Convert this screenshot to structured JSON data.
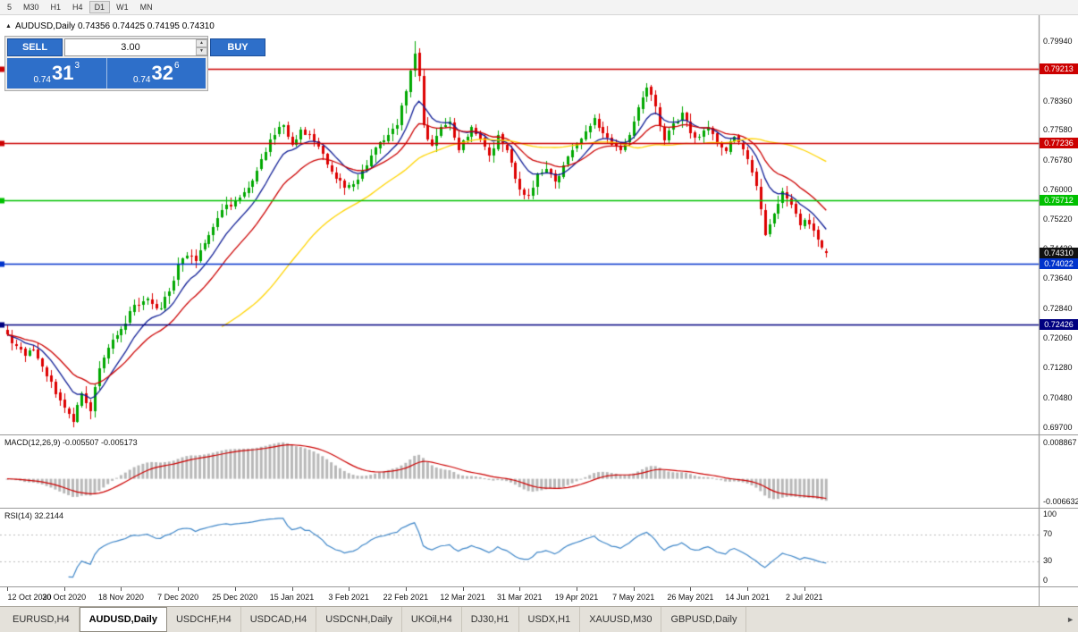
{
  "toolbar": {
    "timeframes": [
      "5",
      "M30",
      "H1",
      "H4",
      "D1",
      "W1",
      "MN"
    ],
    "active": "D1"
  },
  "chart": {
    "title": {
      "text": "AUDUSD,Daily 0.74356 0.74425 0.74195 0.74310"
    },
    "axis_ticks": [
      "0.79940",
      "0.78360",
      "0.77580",
      "0.76780",
      "0.76000",
      "0.75220",
      "0.74430",
      "0.73640",
      "0.72840",
      "0.72060",
      "0.71280",
      "0.70480",
      "0.69700"
    ],
    "hlines": [
      {
        "price": 0.79213,
        "label": "0.79213",
        "color": "#cc0000"
      },
      {
        "price": 0.77236,
        "label": "0.77236",
        "color": "#cc0000"
      },
      {
        "price": 0.75712,
        "label": "0.75712",
        "color": "#00c000"
      },
      {
        "price": 0.74022,
        "label": "0.74022",
        "color": "#0033cc"
      },
      {
        "price": 0.72426,
        "label": "0.72426",
        "color": "#000080"
      }
    ],
    "current_badge": {
      "label": "0.74310",
      "price": 0.7431,
      "color": "#111111"
    },
    "view": {
      "min": 0.695,
      "max": 0.8065
    },
    "colors": {
      "up": "#00a800",
      "down": "#dd0000",
      "ma_fast_blue": "#101e96",
      "ma_mid_red": "#cc0000",
      "ma_slow_yellow": "#ffd400",
      "macd_bar": "#b8b8b8",
      "macd_signal": "#cc0000",
      "rsi_line": "#3e86c8"
    }
  },
  "trade": {
    "sell": "SELL",
    "buy": "BUY",
    "volume": "3.00",
    "bid": {
      "prefix": "0.74",
      "big": "31",
      "sup": "3"
    },
    "ask": {
      "prefix": "0.74",
      "big": "32",
      "sup": "6"
    }
  },
  "macd": {
    "label": "MACD(12,26,9) -0.005507 -0.005173",
    "axis_top": "0.008867",
    "axis_bottom": "-0.006632"
  },
  "rsi": {
    "label": "RSI(14) 32.2144",
    "axis": [
      "100",
      "70",
      "30",
      "0"
    ],
    "levels": [
      70,
      30
    ]
  },
  "tabs_row": {
    "tabs": [
      "EURUSD,H4",
      "AUDUSD,Daily",
      "USDCHF,H4",
      "USDCAD,H4",
      "USDCNH,Daily",
      "UKOil,H4",
      "DJ30,H1",
      "USDX,H1",
      "XAUUSD,M30",
      "GBPUSD,Daily"
    ],
    "active": "AUDUSD,Daily"
  },
  "icons": {
    "spin_up": "▲",
    "spin_down": "▼",
    "scroll_right": "►",
    "collapse": "▲"
  },
  "chart_data": {
    "type": "candlestick",
    "symbol": "AUDUSD",
    "timeframe": "Daily",
    "count": 188,
    "seed": 20210709,
    "ohlc_last": {
      "open": 0.74356,
      "high": 0.74425,
      "low": 0.74195,
      "close": 0.7431
    },
    "extremes": {
      "high_idx": 93,
      "high": 0.7994,
      "low_idx": 15,
      "low": 0.697
    },
    "anchors": [
      [
        0,
        0.7215
      ],
      [
        2,
        0.7185
      ],
      [
        4,
        0.716
      ],
      [
        6,
        0.7175
      ],
      [
        8,
        0.713
      ],
      [
        10,
        0.709
      ],
      [
        12,
        0.704
      ],
      [
        13,
        0.702
      ],
      [
        15,
        0.6985
      ],
      [
        17,
        0.706
      ],
      [
        19,
        0.701
      ],
      [
        21,
        0.7125
      ],
      [
        23,
        0.718
      ],
      [
        26,
        0.723
      ],
      [
        29,
        0.7295
      ],
      [
        32,
        0.731
      ],
      [
        35,
        0.7285
      ],
      [
        37,
        0.733
      ],
      [
        39,
        0.74
      ],
      [
        41,
        0.7425
      ],
      [
        43,
        0.741
      ],
      [
        46,
        0.748
      ],
      [
        49,
        0.7545
      ],
      [
        52,
        0.757
      ],
      [
        55,
        0.7605
      ],
      [
        58,
        0.768
      ],
      [
        61,
        0.7745
      ],
      [
        63,
        0.777
      ],
      [
        65,
        0.772
      ],
      [
        67,
        0.776
      ],
      [
        69,
        0.7745
      ],
      [
        71,
        0.7715
      ],
      [
        73,
        0.7665
      ],
      [
        75,
        0.763
      ],
      [
        77,
        0.7605
      ],
      [
        79,
        0.7615
      ],
      [
        81,
        0.765
      ],
      [
        83,
        0.769
      ],
      [
        85,
        0.7725
      ],
      [
        87,
        0.7745
      ],
      [
        89,
        0.777
      ],
      [
        91,
        0.786
      ],
      [
        93,
        0.796
      ],
      [
        94,
        0.79
      ],
      [
        95,
        0.777
      ],
      [
        97,
        0.7715
      ],
      [
        99,
        0.7765
      ],
      [
        101,
        0.778
      ],
      [
        103,
        0.7705
      ],
      [
        104,
        0.773
      ],
      [
        106,
        0.7765
      ],
      [
        108,
        0.7735
      ],
      [
        110,
        0.769
      ],
      [
        112,
        0.7745
      ],
      [
        114,
        0.7705
      ],
      [
        116,
        0.763
      ],
      [
        117,
        0.76
      ],
      [
        119,
        0.7585
      ],
      [
        121,
        0.764
      ],
      [
        123,
        0.7655
      ],
      [
        125,
        0.762
      ],
      [
        127,
        0.7665
      ],
      [
        129,
        0.7705
      ],
      [
        130,
        0.772
      ],
      [
        132,
        0.7755
      ],
      [
        134,
        0.779
      ],
      [
        136,
        0.775
      ],
      [
        138,
        0.772
      ],
      [
        140,
        0.7705
      ],
      [
        142,
        0.7745
      ],
      [
        143,
        0.778
      ],
      [
        145,
        0.7845
      ],
      [
        146,
        0.787
      ],
      [
        148,
        0.782
      ],
      [
        150,
        0.773
      ],
      [
        152,
        0.7775
      ],
      [
        154,
        0.7805
      ],
      [
        156,
        0.775
      ],
      [
        158,
        0.774
      ],
      [
        160,
        0.7765
      ],
      [
        162,
        0.772
      ],
      [
        164,
        0.77
      ],
      [
        166,
        0.774
      ],
      [
        168,
        0.7705
      ],
      [
        169,
        0.768
      ],
      [
        171,
        0.761
      ],
      [
        173,
        0.748
      ],
      [
        175,
        0.7535
      ],
      [
        177,
        0.7595
      ],
      [
        179,
        0.756
      ],
      [
        181,
        0.7505
      ],
      [
        182,
        0.752
      ],
      [
        184,
        0.749
      ],
      [
        186,
        0.7445
      ],
      [
        187,
        0.7431
      ]
    ],
    "moving_averages": [
      {
        "type": "ema",
        "period": 10,
        "color_key": "ma_fast_blue"
      },
      {
        "type": "ema",
        "period": 20,
        "color_key": "ma_mid_red"
      },
      {
        "type": "sma",
        "period": 50,
        "color_key": "ma_slow_yellow"
      }
    ],
    "macd": {
      "fast": 12,
      "slow": 26,
      "signal": 9,
      "value": -0.005507,
      "signal_value": -0.005173
    },
    "rsi": {
      "period": 14,
      "value": 32.2144
    },
    "date_labels": [
      "12 Oct 2020",
      "30 Oct 2020",
      "18 Nov 2020",
      "7 Dec 2020",
      "25 Dec 2020",
      "15 Jan 2021",
      "3 Feb 2021",
      "22 Feb 2021",
      "12 Mar 2021",
      "31 Mar 2021",
      "19 Apr 2021",
      "7 May 2021",
      "26 May 2021",
      "14 Jun 2021",
      "2 Jul 2021"
    ],
    "label_every": 13,
    "y_axis_range_view": [
      0.695,
      0.8065
    ]
  }
}
